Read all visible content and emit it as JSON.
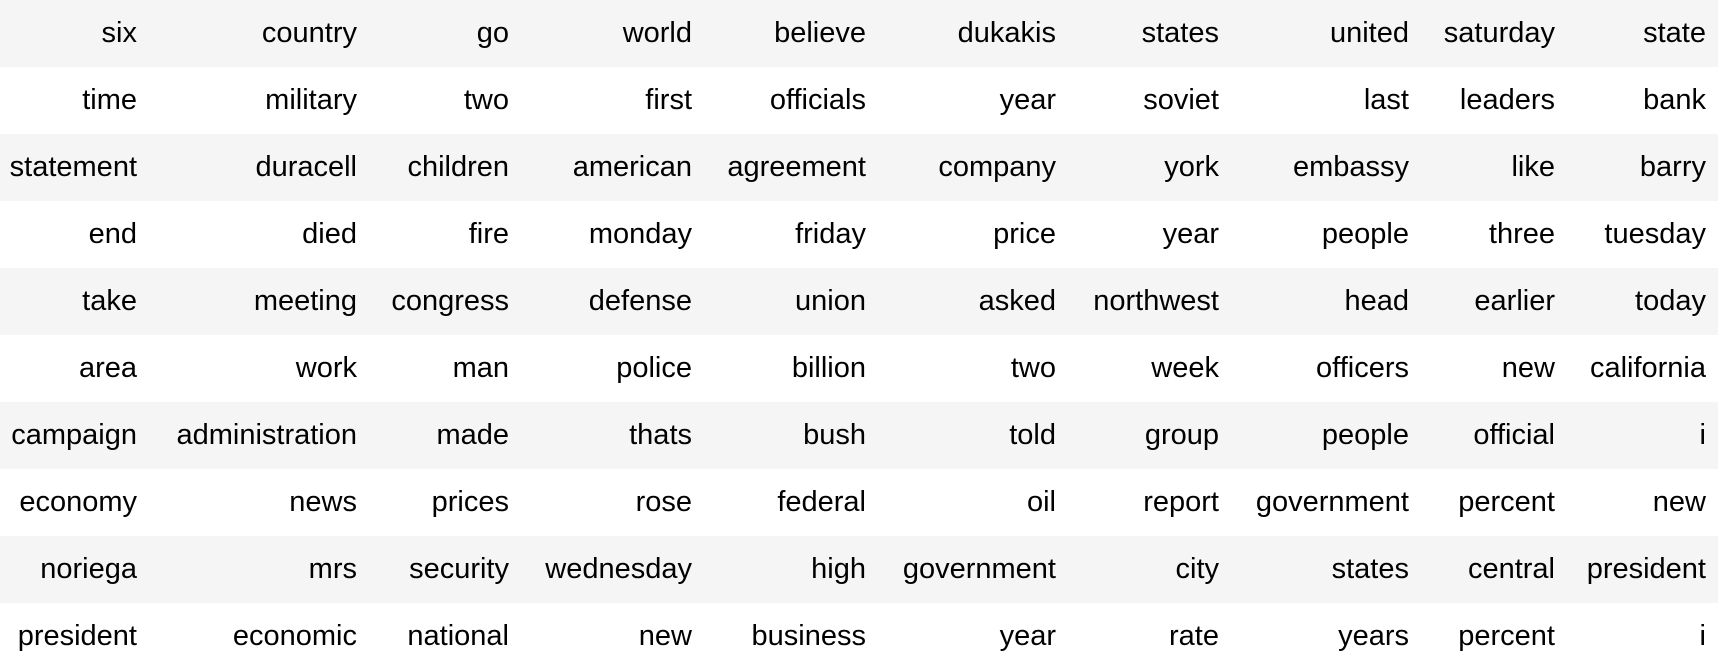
{
  "table": {
    "rows": [
      [
        "six",
        "country",
        "go",
        "world",
        "believe",
        "dukakis",
        "states",
        "united",
        "saturday",
        "state"
      ],
      [
        "time",
        "military",
        "two",
        "first",
        "officials",
        "year",
        "soviet",
        "last",
        "leaders",
        "bank"
      ],
      [
        "statement",
        "duracell",
        "children",
        "american",
        "agreement",
        "company",
        "york",
        "embassy",
        "like",
        "barry"
      ],
      [
        "end",
        "died",
        "fire",
        "monday",
        "friday",
        "price",
        "year",
        "people",
        "three",
        "tuesday"
      ],
      [
        "take",
        "meeting",
        "congress",
        "defense",
        "union",
        "asked",
        "northwest",
        "head",
        "earlier",
        "today"
      ],
      [
        "area",
        "work",
        "man",
        "police",
        "billion",
        "two",
        "week",
        "officers",
        "new",
        "california"
      ],
      [
        "campaign",
        "administration",
        "made",
        "thats",
        "bush",
        "told",
        "group",
        "people",
        "official",
        "i"
      ],
      [
        "economy",
        "news",
        "prices",
        "rose",
        "federal",
        "oil",
        "report",
        "government",
        "percent",
        "new"
      ],
      [
        "noriega",
        "mrs",
        "security",
        "wednesday",
        "high",
        "government",
        "city",
        "states",
        "central",
        "president"
      ],
      [
        "president",
        "economic",
        "national",
        "new",
        "business",
        "year",
        "rate",
        "years",
        "percent",
        "i"
      ]
    ]
  }
}
